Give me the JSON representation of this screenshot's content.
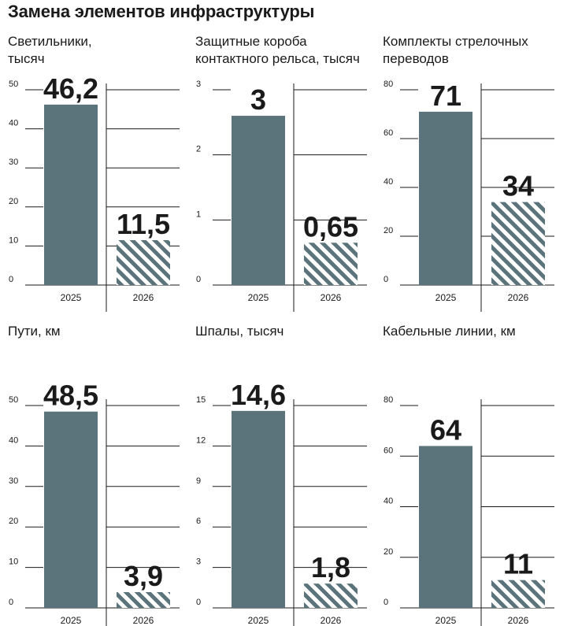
{
  "page_title": "Замена элементов инфраструктуры",
  "colors": {
    "bar_2025": "#5b737a",
    "bar_2026_stripe": "#5b737a",
    "grid": "#1a1a1a"
  },
  "chart_data": [
    {
      "type": "bar",
      "title": "Светильники,\nтысяч",
      "categories": [
        "2025",
        "2026"
      ],
      "values": [
        46.2,
        11.5
      ],
      "value_labels": [
        "46,2",
        "11,5"
      ],
      "yticks": [
        0,
        10,
        20,
        30,
        40,
        50
      ],
      "ylim": [
        0,
        50
      ]
    },
    {
      "type": "bar",
      "title": "Защитные короба\nконтактного рельса, тысяч",
      "categories": [
        "2025",
        "2026"
      ],
      "values": [
        2.6,
        0.65
      ],
      "value_labels": [
        "3",
        "0,65"
      ],
      "yticks": [
        0,
        1,
        2,
        3
      ],
      "ylim": [
        0,
        3
      ]
    },
    {
      "type": "bar",
      "title": "Комплекты стрелочных\nпереводов",
      "categories": [
        "2025",
        "2026"
      ],
      "values": [
        71,
        34
      ],
      "value_labels": [
        "71",
        "34"
      ],
      "yticks": [
        0,
        20,
        40,
        60,
        80
      ],
      "ylim": [
        0,
        80
      ]
    },
    {
      "type": "bar",
      "title": "Пути, км",
      "categories": [
        "2025",
        "2026"
      ],
      "values": [
        48.5,
        3.9
      ],
      "value_labels": [
        "48,5",
        "3,9"
      ],
      "yticks": [
        0,
        10,
        20,
        30,
        40,
        50
      ],
      "ylim": [
        0,
        50
      ]
    },
    {
      "type": "bar",
      "title": "Шпалы, тысяч",
      "categories": [
        "2025",
        "2026"
      ],
      "values": [
        14.6,
        1.8
      ],
      "value_labels": [
        "14,6",
        "1,8"
      ],
      "yticks": [
        0,
        3,
        6,
        9,
        12,
        15
      ],
      "ylim": [
        0,
        15
      ]
    },
    {
      "type": "bar",
      "title": "Кабельные линии, км",
      "categories": [
        "2025",
        "2026"
      ],
      "values": [
        64,
        11
      ],
      "value_labels": [
        "64",
        "11"
      ],
      "yticks": [
        0,
        20,
        40,
        60,
        80
      ],
      "ylim": [
        0,
        80
      ]
    }
  ]
}
